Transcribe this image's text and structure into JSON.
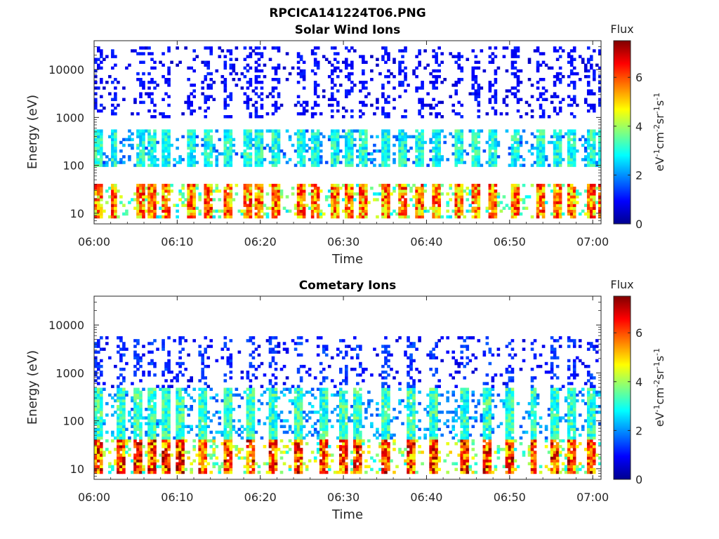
{
  "figure": {
    "filename": "RPCICA141224T06.PNG"
  },
  "chart_data": [
    {
      "type": "heatmap",
      "title": "Solar Wind Ions",
      "xlabel": "Time",
      "ylabel": "Energy (eV)",
      "yscale": "log",
      "xlim": [
        "06:00",
        "07:01"
      ],
      "ylim": [
        6,
        40000
      ],
      "x_ticks": [
        "06:00",
        "06:10",
        "06:20",
        "06:30",
        "06:40",
        "06:50",
        "07:00"
      ],
      "y_ticks": [
        "10",
        "100",
        "1000",
        "10000"
      ],
      "colorbar": {
        "label": "Flux",
        "units": "eV-1cm-2sr-1s-1",
        "range": [
          0,
          7.5
        ],
        "ticks": [
          "0",
          "2",
          "4",
          "6"
        ],
        "colormap": "jet"
      },
      "data_note": "Pulsed energy sweeps every ~1.5 min; strongest flux (4-6.5) at 10-40 eV, moderate (2-4) at 100-800 eV, sparse weak returns (0.5-1.5) above 1 keV.",
      "cycles_minutes": [
        0,
        1.7,
        4.8,
        6.4,
        8.1,
        11.1,
        13.0,
        15.5,
        17.7,
        19.1,
        21.1,
        24.1,
        26.0,
        28.2,
        30.1,
        31.8,
        34.5,
        36.6,
        38.5,
        40.5,
        43.1,
        45.3,
        47.3,
        50.0,
        53.1,
        55.0,
        56.8,
        59.2,
        60.5
      ],
      "bands": [
        {
          "e_low": 8,
          "e_high": 40,
          "flux": 5.5
        },
        {
          "e_low": 100,
          "e_high": 600,
          "flux": 3.0
        },
        {
          "e_low": 1000,
          "e_high": 30000,
          "flux": 1.0
        }
      ]
    },
    {
      "type": "heatmap",
      "title": "Cometary Ions",
      "xlabel": "Time",
      "ylabel": "Energy (eV)",
      "yscale": "log",
      "xlim": [
        "06:00",
        "07:01"
      ],
      "ylim": [
        6,
        40000
      ],
      "x_ticks": [
        "06:00",
        "06:10",
        "06:20",
        "06:30",
        "06:40",
        "06:50",
        "07:00"
      ],
      "y_ticks": [
        "10",
        "100",
        "1000",
        "10000"
      ],
      "colorbar": {
        "label": "Flux",
        "units": "eV-1cm-2sr-1s-1",
        "range": [
          0,
          7.5
        ],
        "ticks": [
          "0",
          "2",
          "4",
          "6"
        ],
        "colormap": "jet"
      },
      "data_note": "Pulsed energy sweeps every ~1.5 min; strongest flux (5-7) at 8-40 eV, moderate (2.5-4) at 40-500 eV, sparse weak returns (1-2) up to ~6 keV.",
      "cycles_minutes": [
        0,
        2.5,
        4.6,
        6.2,
        7.9,
        9.6,
        12.3,
        15.3,
        18.2,
        21.0,
        24.0,
        27.1,
        29.3,
        31.1,
        34.4,
        37.4,
        40.2,
        43.9,
        46.5,
        49.4,
        52.2,
        54.9,
        56.8,
        59.0,
        60.8
      ],
      "bands": [
        {
          "e_low": 8,
          "e_high": 40,
          "flux": 6.0
        },
        {
          "e_low": 40,
          "e_high": 500,
          "flux": 3.2
        },
        {
          "e_low": 500,
          "e_high": 6000,
          "flux": 1.3
        }
      ]
    }
  ]
}
